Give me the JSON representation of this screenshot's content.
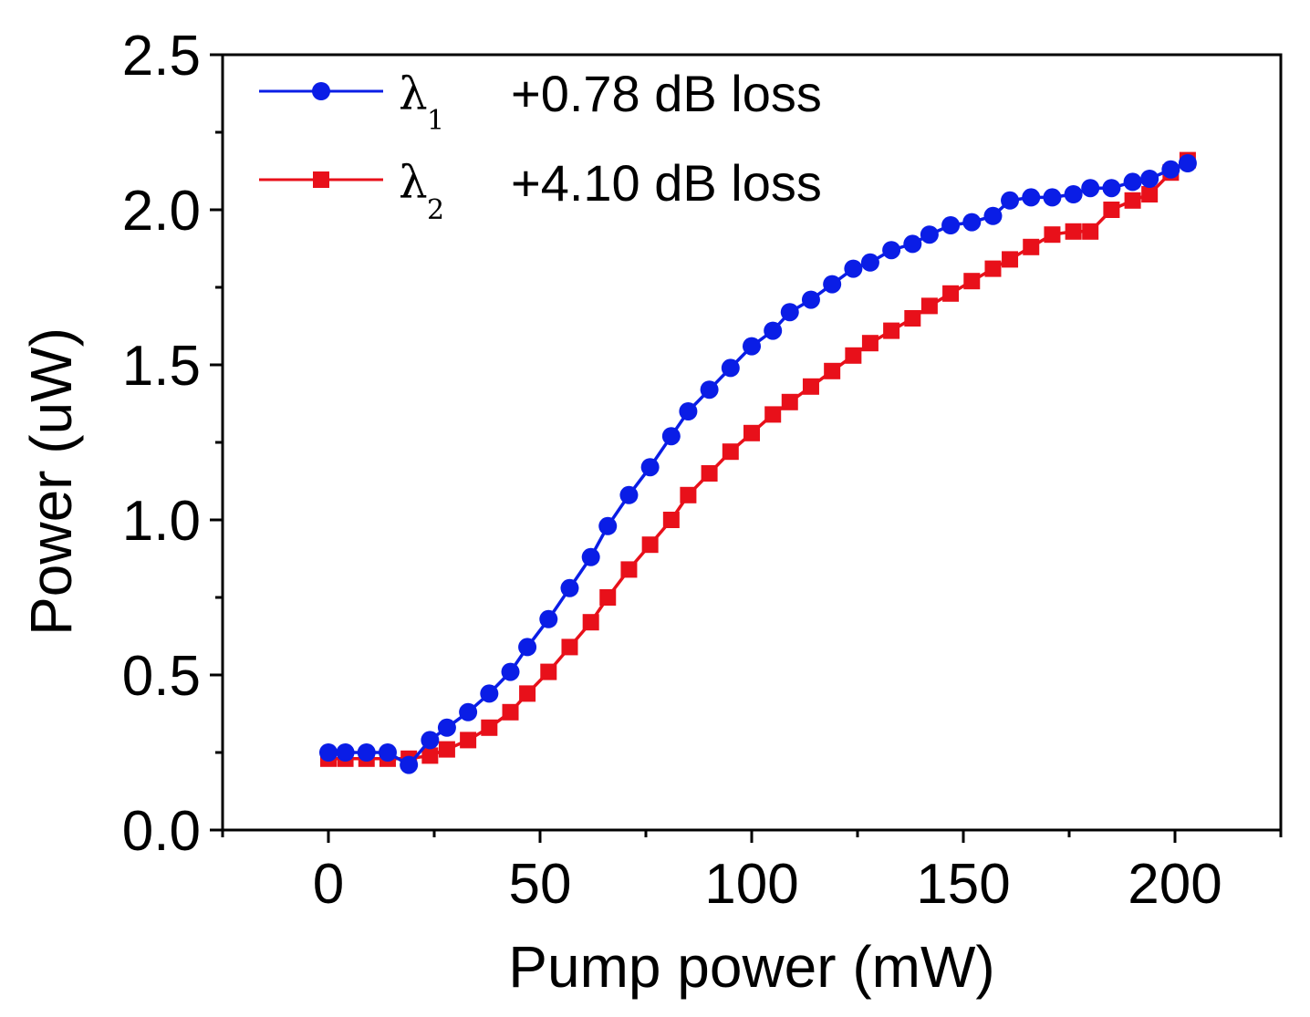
{
  "chart_data": {
    "type": "line",
    "title": "",
    "xlabel": "Pump power (mW)",
    "ylabel": "Power (uW)",
    "xlim": [
      -25,
      225
    ],
    "ylim": [
      0,
      2.5
    ],
    "xticks": [
      "0",
      "50",
      "100",
      "150",
      "200"
    ],
    "yticks": [
      "0.0",
      "0.5",
      "1.0",
      "1.5",
      "2.0",
      "2.5"
    ],
    "grid": false,
    "legend_position": "top-left",
    "series": [
      {
        "name": "λ1",
        "symbol": "λ",
        "subscript": "1",
        "label": "+0.78 dB loss",
        "color": "#0a1de6",
        "marker": "circle",
        "x": [
          0,
          4,
          9,
          14,
          19,
          24,
          28,
          33,
          38,
          43,
          47,
          52,
          57,
          62,
          66,
          71,
          76,
          81,
          85,
          90,
          95,
          100,
          105,
          109,
          114,
          119,
          124,
          128,
          133,
          138,
          142,
          147,
          152,
          157,
          161,
          166,
          171,
          176,
          180,
          185,
          190,
          194,
          199,
          203
        ],
        "y": [
          0.25,
          0.25,
          0.25,
          0.25,
          0.21,
          0.29,
          0.33,
          0.38,
          0.44,
          0.51,
          0.59,
          0.68,
          0.78,
          0.88,
          0.98,
          1.08,
          1.17,
          1.27,
          1.35,
          1.42,
          1.49,
          1.56,
          1.61,
          1.67,
          1.71,
          1.76,
          1.81,
          1.83,
          1.87,
          1.89,
          1.92,
          1.95,
          1.96,
          1.98,
          2.03,
          2.04,
          2.04,
          2.05,
          2.07,
          2.07,
          2.09,
          2.1,
          2.13,
          2.15
        ]
      },
      {
        "name": "λ2",
        "symbol": "λ",
        "subscript": "2",
        "label": "+4.10 dB loss",
        "color": "#e8101a",
        "marker": "square",
        "x": [
          0,
          4,
          9,
          14,
          19,
          24,
          28,
          33,
          38,
          43,
          47,
          52,
          57,
          62,
          66,
          71,
          76,
          81,
          85,
          90,
          95,
          100,
          105,
          109,
          114,
          119,
          124,
          128,
          133,
          138,
          142,
          147,
          152,
          157,
          161,
          166,
          171,
          176,
          180,
          185,
          190,
          194,
          199,
          203
        ],
        "y": [
          0.23,
          0.23,
          0.23,
          0.23,
          0.23,
          0.24,
          0.26,
          0.29,
          0.33,
          0.38,
          0.44,
          0.51,
          0.59,
          0.67,
          0.75,
          0.84,
          0.92,
          1.0,
          1.08,
          1.15,
          1.22,
          1.28,
          1.34,
          1.38,
          1.43,
          1.48,
          1.53,
          1.57,
          1.61,
          1.65,
          1.69,
          1.73,
          1.77,
          1.81,
          1.84,
          1.88,
          1.92,
          1.93,
          1.93,
          2.0,
          2.03,
          2.05,
          2.12,
          2.16
        ]
      }
    ]
  }
}
